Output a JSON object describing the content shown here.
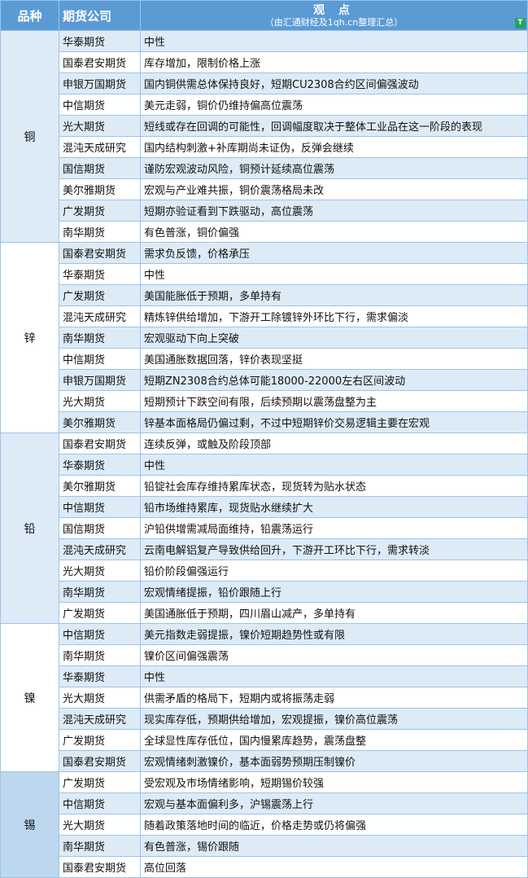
{
  "header": {
    "variety": "品种",
    "company": "期货公司",
    "view_title": "观 点",
    "view_subtitle": "（由汇通财经及1qh.cn整理汇总）",
    "filter_icon": "filter-icon"
  },
  "groups": [
    {
      "name": "铜",
      "rows": [
        [
          "华泰期货",
          "中性"
        ],
        [
          "国泰君安期货",
          "库存增加，限制价格上涨"
        ],
        [
          "申银万国期货",
          "国内铜供需总体保持良好，短期CU2308合约区间偏强波动"
        ],
        [
          "中信期货",
          "美元走弱，铜价仍维持偏高位震荡"
        ],
        [
          "光大期货",
          "短线或存在回调的可能性，回调幅度取决于整体工业品在这一阶段的表现"
        ],
        [
          "混沌天成研究",
          "国内结构刺激+补库期尚未证伪，反弹会继续"
        ],
        [
          "国信期货",
          "谨防宏观波动风险，铜预计延续高位震荡"
        ],
        [
          "美尔雅期货",
          "宏观与产业难共振，铜价震荡格局未改"
        ],
        [
          "广发期货",
          "短期亦验证看到下跌驱动，高位震荡"
        ],
        [
          "南华期货",
          "有色普涨，铜价偏强"
        ]
      ]
    },
    {
      "name": "锌",
      "rows": [
        [
          "国泰君安期货",
          "需求负反馈，价格承压"
        ],
        [
          "华泰期货",
          "中性"
        ],
        [
          "广发期货",
          "美国能胀低于预期，多单持有"
        ],
        [
          "混沌天成研究",
          "精炼锌供给增加，下游开工除镀锌外环比下行，需求偏淡"
        ],
        [
          "南华期货",
          "宏观驱动下向上突破"
        ],
        [
          "中信期货",
          "美国通胀数据回落，锌价表现坚挺"
        ],
        [
          "申银万国期货",
          "短期ZN2308合约总体可能18000-22000左右区间波动"
        ],
        [
          "光大期货",
          "短期预计下跌空间有限，后续预期以震荡盘整为主"
        ],
        [
          "美尔雅期货",
          "锌基本面格局仍偏过剩，不过中短期锌价交易逻辑主要在宏观"
        ]
      ]
    },
    {
      "name": "铅",
      "rows": [
        [
          "国泰君安期货",
          "连续反弹，或触及阶段顶部"
        ],
        [
          "华泰期货",
          "中性"
        ],
        [
          "美尔雅期货",
          "铅锭社会库存维持累库状态，现货转为贴水状态"
        ],
        [
          "中信期货",
          "铅市场维持累库，现货贴水继续扩大"
        ],
        [
          "国信期货",
          "沪铅供增需减局面维持，铅震荡运行"
        ],
        [
          "混沌天成研究",
          "云南电解铝复产导致供给回升，下游开工环比下行，需求转淡"
        ],
        [
          "光大期货",
          "铅价阶段偏强运行"
        ],
        [
          "南华期货",
          "宏观情绪提振，铅价跟随上行"
        ],
        [
          "广发期货",
          "美国通胀低于预期，四川眉山减产，多单持有"
        ]
      ]
    },
    {
      "name": "镍",
      "rows": [
        [
          "中信期货",
          "美元指数走弱提振，镍价短期趋势性或有限"
        ],
        [
          "南华期货",
          "镍价区间偏强震荡"
        ],
        [
          "华泰期货",
          "中性"
        ],
        [
          "光大期货",
          "供需矛盾的格局下，短期内或将振荡走弱"
        ],
        [
          "混沌天成研究",
          "现实库存低，预期供给增加，宏观提振，镍价高位震荡"
        ],
        [
          "广发期货",
          "全球显性库存低位，国内慢累库趋势，震荡盘整"
        ],
        [
          "国泰君安期货",
          "宏观情绪刺激镍价，基本面弱势预期压制镍价"
        ]
      ]
    },
    {
      "name": "锡",
      "rows": [
        [
          "广发期货",
          "受宏观及市场情绪影响，短期锡价较强"
        ],
        [
          "中信期货",
          "宏观与基本面偏利多，沪锡震荡上行"
        ],
        [
          "光大期货",
          "随着政策落地时间的临近，价格走势或仍将偏强"
        ],
        [
          "南华期货",
          "有色普涨，锡价跟随"
        ],
        [
          "国泰君安期货",
          "高位回落"
        ]
      ]
    }
  ],
  "colors": {
    "header_bg": "#5b9bd5",
    "row_alt": "#ddebf7",
    "border": "#9dc3e6",
    "tin_group": "#bdd7ee",
    "filter": "#21a366"
  }
}
